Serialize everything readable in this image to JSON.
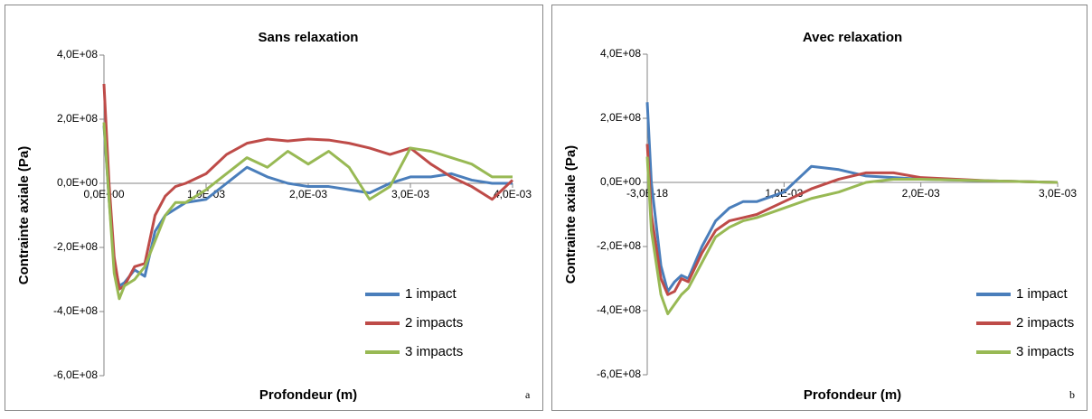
{
  "chart_data": [
    {
      "type": "line",
      "title": "Sans relaxation",
      "x_label": "Profondeur (m)",
      "y_label": "Contrainte axiale (Pa)",
      "panel_label": "a",
      "x": [
        0,
        5e-05,
        0.0001,
        0.00015,
        0.0002,
        0.0003,
        0.0004,
        0.0005,
        0.0006,
        0.0007,
        0.0008,
        0.001,
        0.0012,
        0.0014,
        0.0016,
        0.0018,
        0.002,
        0.0022,
        0.0024,
        0.0026,
        0.0028,
        0.003,
        0.0032,
        0.0034,
        0.0036,
        0.0038,
        0.004
      ],
      "series": [
        {
          "name": "1 impact",
          "color": "#4a7ebb",
          "values": [
            180000000,
            -50000000,
            -250000000,
            -320000000,
            -310000000,
            -270000000,
            -290000000,
            -150000000,
            -100000000,
            -80000000,
            -60000000,
            -50000000,
            0,
            50000000,
            20000000,
            0,
            -10000000,
            -10000000,
            -20000000,
            -30000000,
            0,
            20000000,
            20000000,
            30000000,
            10000000,
            0,
            0
          ]
        },
        {
          "name": "2 impacts",
          "color": "#be4b48",
          "values": [
            310000000,
            0,
            -230000000,
            -330000000,
            -320000000,
            -260000000,
            -250000000,
            -100000000,
            -40000000,
            -10000000,
            0,
            30000000,
            90000000,
            125000000,
            138000000,
            132000000,
            138000000,
            135000000,
            125000000,
            110000000,
            90000000,
            110000000,
            60000000,
            20000000,
            -10000000,
            -50000000,
            10000000
          ]
        },
        {
          "name": "3 impacts",
          "color": "#98b954",
          "values": [
            190000000,
            -50000000,
            -280000000,
            -360000000,
            -320000000,
            -300000000,
            -260000000,
            -180000000,
            -100000000,
            -60000000,
            -60000000,
            -20000000,
            30000000,
            80000000,
            50000000,
            100000000,
            60000000,
            100000000,
            50000000,
            -50000000,
            -10000000,
            110000000,
            100000000,
            80000000,
            60000000,
            20000000,
            20000000
          ]
        }
      ],
      "xlim": [
        0,
        0.004
      ],
      "xticks": [
        {
          "value": 0,
          "label": "0,0E+00"
        },
        {
          "value": 0.001,
          "label": "1,0E-03"
        },
        {
          "value": 0.002,
          "label": "2,0E-03"
        },
        {
          "value": 0.003,
          "label": "3,0E-03"
        },
        {
          "value": 0.004,
          "label": "4,0E-03"
        }
      ],
      "ylim": [
        -600000000,
        400000000
      ],
      "yticks": [
        {
          "value": -600000000,
          "label": "-6,0E+08"
        },
        {
          "value": -400000000,
          "label": "-4,0E+08"
        },
        {
          "value": -200000000,
          "label": "-2,0E+08"
        },
        {
          "value": 0,
          "label": "0,0E+00"
        },
        {
          "value": 200000000,
          "label": "2,0E+08"
        },
        {
          "value": 400000000,
          "label": "4,0E+08"
        }
      ],
      "legend": "lower right"
    },
    {
      "type": "line",
      "title": "Avec relaxation",
      "x_label": "Profondeur (m)",
      "y_label": "Contrainte axiale (Pa)",
      "panel_label": "b",
      "x": [
        0,
        3e-05,
        0.0001,
        0.00015,
        0.0002,
        0.00025,
        0.0003,
        0.0004,
        0.0005,
        0.0006,
        0.0007,
        0.0008,
        0.001,
        0.0012,
        0.0014,
        0.0016,
        0.0018,
        0.002,
        0.0025,
        0.003
      ],
      "series": [
        {
          "name": "1 impact",
          "color": "#4a7ebb",
          "values": [
            250000000,
            0,
            -260000000,
            -340000000,
            -310000000,
            -290000000,
            -300000000,
            -200000000,
            -120000000,
            -80000000,
            -60000000,
            -60000000,
            -30000000,
            50000000,
            40000000,
            20000000,
            15000000,
            10000000,
            5000000,
            0
          ]
        },
        {
          "name": "2 impacts",
          "color": "#be4b48",
          "values": [
            120000000,
            -100000000,
            -300000000,
            -350000000,
            -340000000,
            -300000000,
            -310000000,
            -220000000,
            -150000000,
            -120000000,
            -110000000,
            -100000000,
            -60000000,
            -20000000,
            10000000,
            30000000,
            30000000,
            15000000,
            5000000,
            0
          ]
        },
        {
          "name": "3 impacts",
          "color": "#98b954",
          "values": [
            80000000,
            -150000000,
            -350000000,
            -410000000,
            -380000000,
            -350000000,
            -330000000,
            -250000000,
            -170000000,
            -140000000,
            -120000000,
            -110000000,
            -80000000,
            -50000000,
            -30000000,
            0,
            10000000,
            10000000,
            5000000,
            0
          ]
        }
      ],
      "xlim": [
        -3e-18,
        0.003
      ],
      "xticks": [
        {
          "value": -3e-18,
          "label": "-3,0E-18"
        },
        {
          "value": 0.001,
          "label": "1,0E-03"
        },
        {
          "value": 0.002,
          "label": "2,0E-03"
        },
        {
          "value": 0.003,
          "label": "3,0E-03"
        }
      ],
      "ylim": [
        -600000000,
        400000000
      ],
      "yticks": [
        {
          "value": -600000000,
          "label": "-6,0E+08"
        },
        {
          "value": -400000000,
          "label": "-4,0E+08"
        },
        {
          "value": -200000000,
          "label": "-2,0E+08"
        },
        {
          "value": 0,
          "label": "0,0E+00"
        },
        {
          "value": 200000000,
          "label": "2,0E+08"
        },
        {
          "value": 400000000,
          "label": "4,0E+08"
        }
      ],
      "legend": "lower right"
    }
  ]
}
